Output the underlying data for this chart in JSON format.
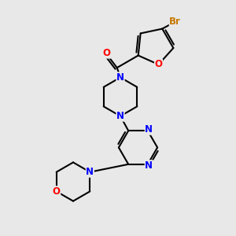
{
  "bg_color": "#e8e8e8",
  "black": "#000000",
  "blue": "#0000ff",
  "red": "#ff0000",
  "orange": "#c87800",
  "lw": 1.5,
  "dlw": 1.5,
  "fs": 8.5,
  "xlim": [
    0,
    10
  ],
  "ylim": [
    0,
    10
  ],
  "figsize": [
    3.0,
    3.0
  ],
  "dpi": 100
}
